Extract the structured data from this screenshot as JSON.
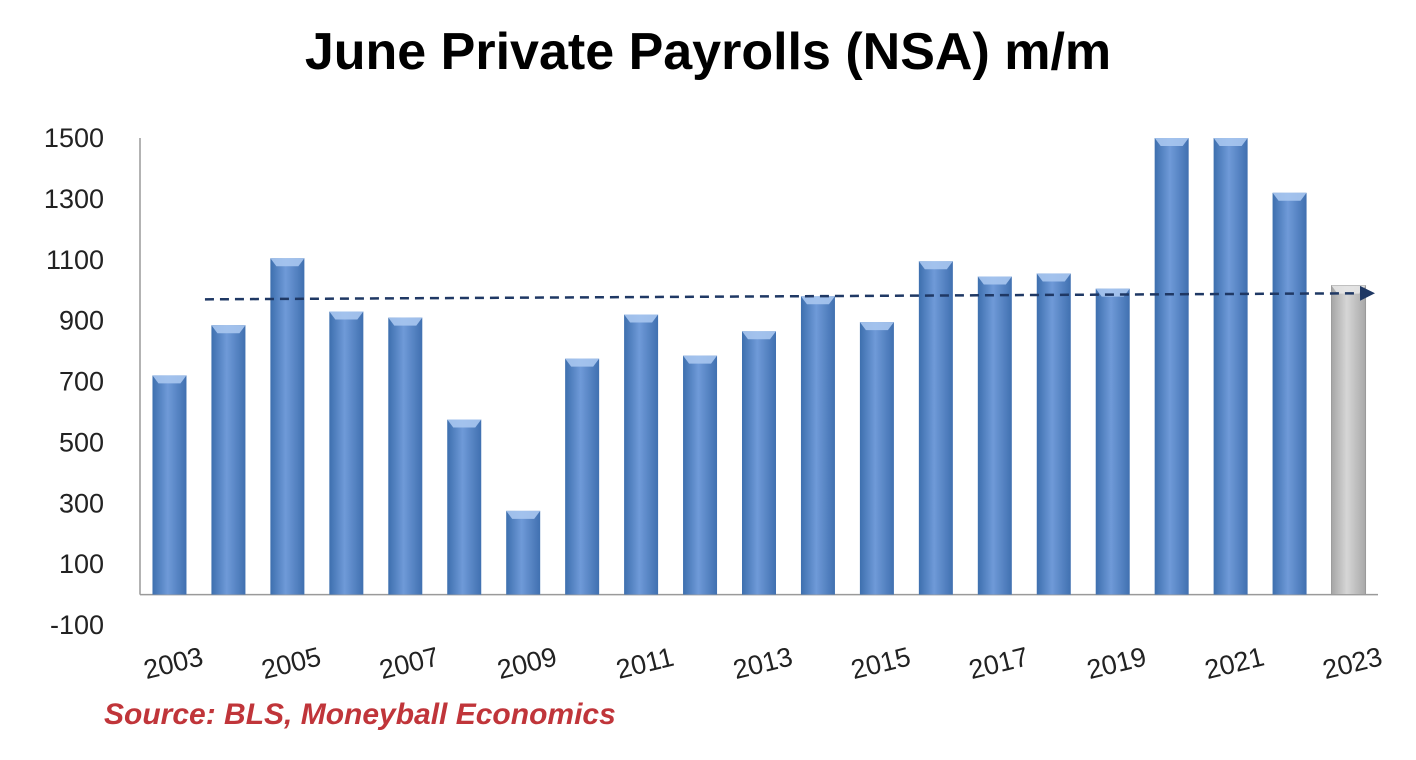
{
  "chart_data": {
    "type": "bar",
    "title": "June Private Payrolls (NSA) m/m",
    "source": "Source: BLS, Moneyball Economics",
    "xlabel": "",
    "ylabel": "",
    "ylim": [
      -100,
      1500
    ],
    "yticks": [
      -100,
      100,
      300,
      500,
      700,
      900,
      1100,
      1300,
      1500
    ],
    "categories": [
      "2003",
      "2004",
      "2005",
      "2006",
      "2007",
      "2008",
      "2009",
      "2010",
      "2011",
      "2012",
      "2013",
      "2014",
      "2015",
      "2016",
      "2017",
      "2018",
      "2019",
      "2020",
      "2021",
      "2022",
      "2023"
    ],
    "xtick_labels": [
      "2003",
      "2005",
      "2007",
      "2009",
      "2011",
      "2013",
      "2015",
      "2017",
      "2019",
      "2021",
      "2023"
    ],
    "values": [
      720,
      885,
      1105,
      930,
      910,
      575,
      275,
      775,
      920,
      785,
      865,
      980,
      895,
      1095,
      1045,
      1055,
      1005,
      1500,
      1500,
      1320,
      1015
    ],
    "highlighted_category": "2023",
    "trend_line": {
      "start": 970,
      "end": 990,
      "style": "dashed",
      "arrow": true
    },
    "grid": false,
    "legend": "none",
    "colors": {
      "bar": "#4f81bd",
      "bar_highlight": "#b7b7b7",
      "trend": "#1f3864",
      "source": "#c0353a"
    }
  }
}
